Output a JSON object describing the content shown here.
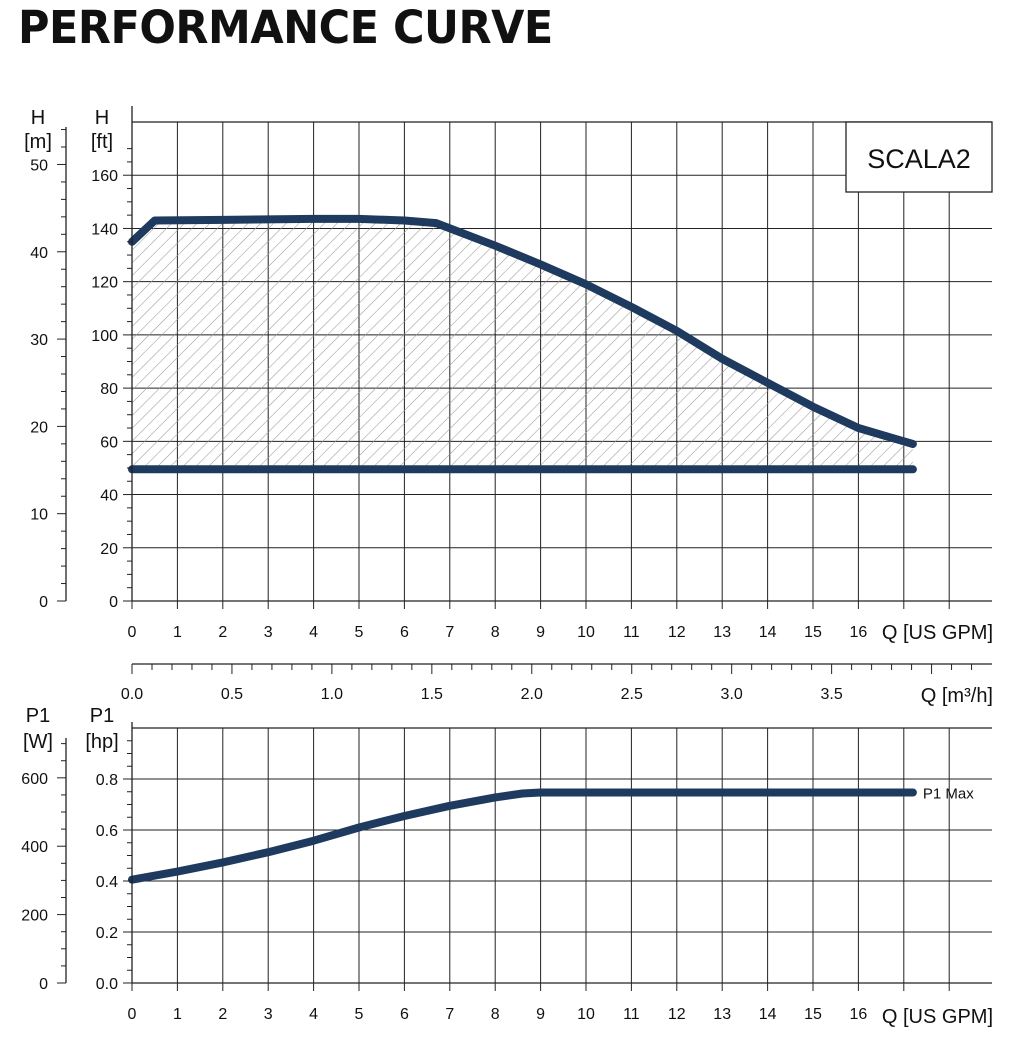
{
  "title": "PERFORMANCE CURVE",
  "colors": {
    "curve": "#1f3a5f",
    "grid": "#222222",
    "hatch": "#9a9a9a"
  },
  "chart_data": [
    {
      "type": "area",
      "label": "SCALA2",
      "y_units_left": {
        "name": "H",
        "unit": "[m]"
      },
      "y_units_right": {
        "name": "H",
        "unit": "[ft]"
      },
      "xlabel": "Q [US GPM]",
      "x_ticks": [
        0,
        1,
        2,
        3,
        4,
        5,
        6,
        7,
        8,
        9,
        10,
        11,
        12,
        13,
        14,
        15,
        16
      ],
      "xlim": [
        0,
        19
      ],
      "ylim_ft": [
        0,
        180
      ],
      "yticks_ft": [
        0,
        20,
        40,
        60,
        80,
        100,
        120,
        140,
        160
      ],
      "yticks_m": [
        0,
        10,
        20,
        30,
        40,
        50
      ],
      "grid": true,
      "series": [
        {
          "name": "",
          "x": [
            0,
            0.5,
            2,
            4,
            5,
            6,
            6.7,
            8,
            9,
            10,
            11,
            12,
            13,
            14,
            15,
            16,
            17.2
          ],
          "y": [
            135,
            143,
            143.2,
            143.6,
            143.6,
            143,
            142,
            133.5,
            126.5,
            119,
            110.5,
            101.5,
            91,
            82,
            73,
            65,
            59
          ]
        },
        {
          "name": "",
          "x": [
            0,
            17.2
          ],
          "y": [
            49.5,
            49.5
          ]
        }
      ]
    },
    {
      "type": "line",
      "x2label": "Q [m³/h]",
      "x2_ticks": [
        "0.0",
        "0.5",
        "1.0",
        "1.5",
        "2.0",
        "2.5",
        "3.0",
        "3.5"
      ],
      "y_units_left": {
        "name": "P1",
        "unit": "[W]"
      },
      "y_units_right": {
        "name": "P1",
        "unit": "[hp]"
      },
      "xlabel": "Q [US GPM]",
      "x_ticks": [
        0,
        1,
        2,
        3,
        4,
        5,
        6,
        7,
        8,
        9,
        10,
        11,
        12,
        13,
        14,
        15,
        16
      ],
      "xlim": [
        0,
        19
      ],
      "ylim_hp": [
        0,
        1.0
      ],
      "yticks_hp": [
        "0.0",
        "0.2",
        "0.4",
        "0.6",
        "0.8"
      ],
      "yticks_w": [
        0,
        200,
        400,
        600
      ],
      "grid": true,
      "series": [
        {
          "name": "P1 Max",
          "x": [
            0,
            1,
            2,
            3,
            4,
            5,
            6,
            7,
            8,
            8.6,
            9,
            11,
            12,
            14,
            16,
            17.2
          ],
          "y": [
            0.405,
            0.437,
            0.473,
            0.513,
            0.558,
            0.61,
            0.655,
            0.695,
            0.728,
            0.743,
            0.747,
            0.747,
            0.747,
            0.747,
            0.747,
            0.747
          ]
        }
      ]
    }
  ]
}
